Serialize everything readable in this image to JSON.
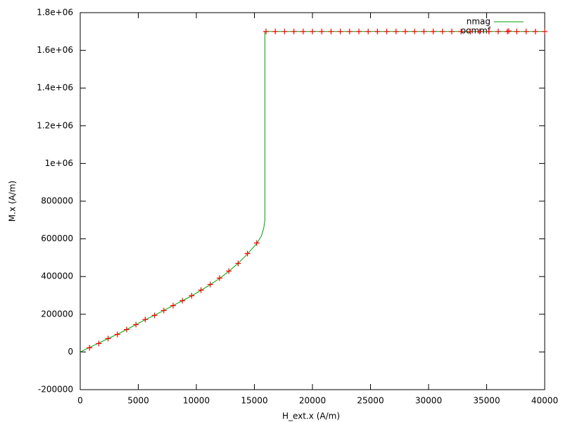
{
  "chart_data": {
    "type": "line",
    "xlabel": "H_ext.x (A/m)",
    "ylabel": "M.x (A/m)",
    "xlim": [
      0,
      40000
    ],
    "ylim": [
      -200000,
      1800000
    ],
    "xticks": [
      0,
      5000,
      10000,
      15000,
      20000,
      25000,
      30000,
      35000,
      40000
    ],
    "yticks": [
      -200000,
      0,
      200000,
      400000,
      600000,
      800000,
      {
        "value": 1000000,
        "label": "1e+06"
      },
      {
        "value": 1200000,
        "label": "1.2e+06"
      },
      {
        "value": 1400000,
        "label": "1.4e+06"
      },
      {
        "value": 1600000,
        "label": "1.6e+06"
      },
      {
        "value": 1800000,
        "label": "1.8e+06"
      }
    ],
    "legend": "top right",
    "series": [
      {
        "name": "nmag",
        "color": "#00a000",
        "style": "line",
        "x": [
          0,
          800,
          1600,
          2400,
          3200,
          4000,
          4800,
          5600,
          6400,
          7200,
          8000,
          8800,
          9600,
          10400,
          11200,
          12000,
          12800,
          13600,
          14400,
          15200,
          15600,
          15800,
          15900,
          15900,
          40000
        ],
        "values": [
          0,
          24000,
          47000,
          71000,
          94000,
          119000,
          145000,
          171000,
          195000,
          220000,
          246000,
          272000,
          298000,
          327000,
          357000,
          390000,
          428000,
          470000,
          520000,
          575000,
          615000,
          655000,
          700000,
          1700000,
          1700000
        ]
      },
      {
        "name": "oommf",
        "color": "#ff0000",
        "style": "points",
        "x": [
          800,
          1600,
          2400,
          3200,
          4000,
          4800,
          5600,
          6400,
          7200,
          8000,
          8800,
          9600,
          10400,
          11200,
          12000,
          12800,
          13600,
          14400,
          15200,
          16000,
          16800,
          17600,
          18400,
          19200,
          20000,
          20800,
          21600,
          22400,
          23200,
          24000,
          24800,
          25600,
          26400,
          27200,
          28000,
          28800,
          29600,
          30400,
          31200,
          32000,
          32800,
          33600,
          34400,
          35200,
          36000,
          36800,
          37600,
          38400,
          39200,
          40000
        ],
        "values": [
          22000,
          45000,
          71000,
          93000,
          119000,
          145000,
          172000,
          194000,
          220000,
          246000,
          272000,
          298000,
          328000,
          358000,
          392000,
          429000,
          470000,
          522000,
          578000,
          1700000,
          1700000,
          1700000,
          1700000,
          1700000,
          1700000,
          1700000,
          1700000,
          1700000,
          1700000,
          1700000,
          1700000,
          1700000,
          1700000,
          1700000,
          1700000,
          1700000,
          1700000,
          1700000,
          1700000,
          1700000,
          1700000,
          1700000,
          1700000,
          1700000,
          1700000,
          1700000,
          1700000,
          1700000,
          1700000,
          1700000
        ]
      }
    ]
  }
}
